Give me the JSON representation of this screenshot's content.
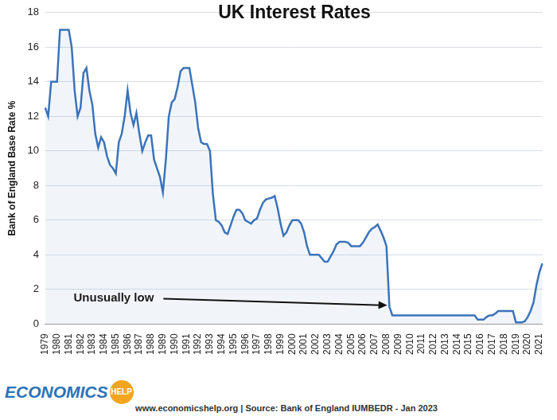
{
  "chart_data": {
    "type": "line",
    "title": "UK Interest Rates",
    "ylabel": "Bank of England Base Rate %",
    "annotations": [
      "Unusually low"
    ],
    "footer": "www.economicshelp.org | Source: Bank of England IUMBEDR - Jan 2023",
    "logo": [
      "ECONOMICS",
      "HELP"
    ],
    "color": "#3b73b9",
    "grid": true,
    "ylim": [
      0,
      18
    ],
    "yticks": [
      0,
      2,
      4,
      6,
      8,
      10,
      12,
      14,
      16,
      18
    ],
    "categories": [
      "1979",
      null,
      null,
      null,
      "1980",
      null,
      null,
      null,
      "1981",
      null,
      null,
      null,
      "1982",
      null,
      null,
      null,
      "1983",
      null,
      null,
      null,
      "1984",
      null,
      null,
      null,
      "1985",
      null,
      null,
      null,
      "1986",
      null,
      null,
      null,
      "1987",
      null,
      null,
      null,
      "1988",
      null,
      null,
      null,
      "1989",
      null,
      null,
      null,
      "1990",
      null,
      null,
      null,
      "1991",
      null,
      null,
      null,
      "1992",
      null,
      null,
      null,
      "1993",
      null,
      null,
      null,
      "1994",
      null,
      null,
      null,
      "1995",
      null,
      null,
      null,
      "1996",
      null,
      null,
      null,
      "1997",
      null,
      null,
      null,
      "1998",
      null,
      null,
      null,
      "1999",
      null,
      null,
      null,
      "2000",
      null,
      null,
      null,
      "2001",
      null,
      null,
      null,
      "2002",
      null,
      null,
      null,
      "2003",
      null,
      null,
      null,
      "2004",
      null,
      null,
      null,
      "2005",
      null,
      null,
      null,
      "2006",
      null,
      null,
      null,
      "2007",
      null,
      null,
      null,
      "2008",
      null,
      null,
      null,
      "2009",
      null,
      null,
      null,
      "2010",
      null,
      null,
      null,
      "2011",
      null,
      null,
      null,
      "2012",
      null,
      null,
      null,
      "2013",
      null,
      null,
      null,
      "2014",
      null,
      null,
      null,
      "2015",
      null,
      null,
      null,
      "2016",
      null,
      null,
      null,
      "2017",
      null,
      null,
      null,
      "2018",
      null,
      null,
      null,
      "2019",
      null,
      null,
      null,
      "2020",
      null,
      null,
      null,
      "2021",
      null
    ],
    "values": [
      12.5,
      12,
      14,
      14,
      14,
      17,
      17,
      17,
      17,
      16,
      13.5,
      12,
      12.5,
      14.5,
      14.8,
      13.5,
      12.7,
      11,
      10.2,
      10.8,
      10.5,
      9.7,
      9.2,
      9,
      8.7,
      10.5,
      11,
      12,
      13.5,
      12.2,
      11.5,
      12.2,
      11,
      10,
      10.5,
      10.9,
      10.9,
      9.5,
      9,
      8.5,
      7.6,
      9.5,
      12,
      12.8,
      13,
      13.7,
      14.6,
      14.8,
      14.8,
      14.8,
      13.8,
      12.8,
      11.3,
      10.5,
      10.4,
      10.4,
      10,
      7.5,
      6,
      5.9,
      5.7,
      5.3,
      5.2,
      5.7,
      6.2,
      6.6,
      6.6,
      6.4,
      6,
      5.9,
      5.8,
      6,
      6.1,
      6.6,
      7,
      7.2,
      7.25,
      7.3,
      7.4,
      6.7,
      5.8,
      5.1,
      5.3,
      5.7,
      6,
      6,
      6,
      5.8,
      5.3,
      4.5,
      4,
      4,
      4,
      4,
      3.8,
      3.6,
      3.6,
      3.9,
      4.2,
      4.6,
      4.75,
      4.75,
      4.75,
      4.7,
      4.5,
      4.5,
      4.5,
      4.5,
      4.7,
      5,
      5.3,
      5.5,
      5.6,
      5.75,
      5.4,
      5,
      4.5,
      1,
      0.5,
      0.5,
      0.5,
      0.5,
      0.5,
      0.5,
      0.5,
      0.5,
      0.5,
      0.5,
      0.5,
      0.5,
      0.5,
      0.5,
      0.5,
      0.5,
      0.5,
      0.5,
      0.5,
      0.5,
      0.5,
      0.5,
      0.5,
      0.5,
      0.5,
      0.5,
      0.5,
      0.5,
      0.5,
      0.25,
      0.25,
      0.25,
      0.4,
      0.5,
      0.5,
      0.6,
      0.75,
      0.75,
      0.75,
      0.75,
      0.75,
      0.75,
      0.1,
      0.1,
      0.1,
      0.15,
      0.4,
      0.75,
      1.25,
      2.25,
      3,
      3.5
    ]
  }
}
